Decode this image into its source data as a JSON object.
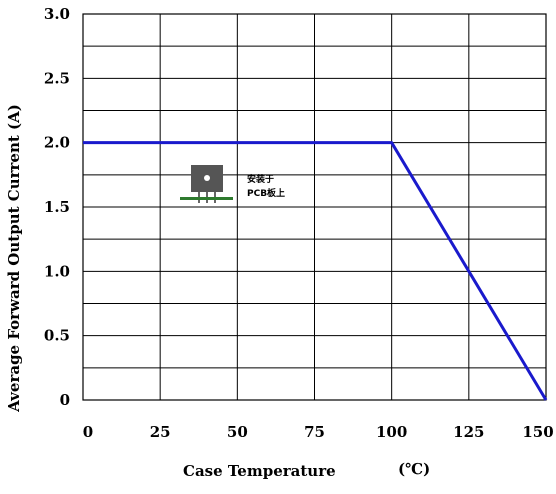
{
  "chart_data": {
    "type": "line",
    "xlabel": "Case Temperature",
    "xunit": "(℃)",
    "ylabel": "Average Forward Output Current (A)",
    "xlim": [
      0,
      150
    ],
    "ylim": [
      0,
      3.0
    ],
    "x_ticks": [
      "0",
      "25",
      "50",
      "75",
      "100",
      "125",
      "150"
    ],
    "y_ticks": [
      "0",
      "0.5",
      "1.0",
      "1.5",
      "2.0",
      "2.5",
      "3.0"
    ],
    "grid": true,
    "series": [
      {
        "color": "#1a1acc",
        "points": [
          [
            0,
            2.0
          ],
          [
            100,
            2.0
          ],
          [
            125,
            1.0
          ],
          [
            150,
            0
          ]
        ]
      }
    ],
    "annotation": {
      "icon": "pcb-mounted-component-icon",
      "line1": "安装于",
      "line2": "PCB板上"
    }
  }
}
